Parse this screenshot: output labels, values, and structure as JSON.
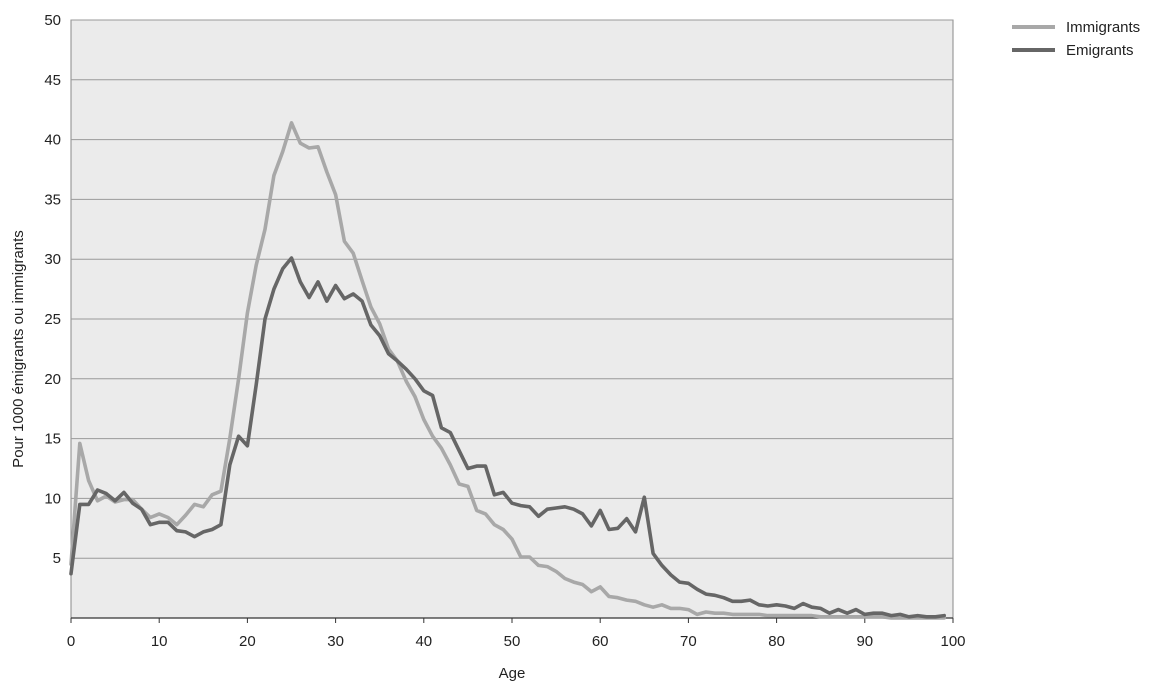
{
  "chart_data": {
    "type": "line",
    "title": "",
    "xlabel": "Age",
    "ylabel": "Pour 1000 émigrants ou immigrants",
    "xlim": [
      0,
      100
    ],
    "ylim": [
      0,
      50
    ],
    "x_ticks": [
      "0",
      "10",
      "20",
      "30",
      "40",
      "50",
      "60",
      "70",
      "80",
      "90",
      "100"
    ],
    "y_ticks": [
      "5",
      "10",
      "15",
      "20",
      "25",
      "30",
      "35",
      "40",
      "45",
      "50"
    ],
    "grid": "horizontal",
    "legend_position": "top-right",
    "plot_background": "#ebebeb",
    "gridline_color": "#9a9a9a",
    "x": [
      0,
      1,
      2,
      3,
      4,
      5,
      6,
      7,
      8,
      9,
      10,
      11,
      12,
      13,
      14,
      15,
      16,
      17,
      18,
      19,
      20,
      21,
      22,
      23,
      24,
      25,
      26,
      27,
      28,
      29,
      30,
      31,
      32,
      33,
      34,
      35,
      36,
      37,
      38,
      39,
      40,
      41,
      42,
      43,
      44,
      45,
      46,
      47,
      48,
      49,
      50,
      51,
      52,
      53,
      54,
      55,
      56,
      57,
      58,
      59,
      60,
      61,
      62,
      63,
      64,
      65,
      66,
      67,
      68,
      69,
      70,
      71,
      72,
      73,
      74,
      75,
      76,
      77,
      78,
      79,
      80,
      81,
      82,
      83,
      84,
      85,
      86,
      87,
      88,
      89,
      90,
      91,
      92,
      93,
      94,
      95,
      96,
      97,
      98,
      99
    ],
    "series": [
      {
        "name": "Immigrants",
        "color": "#a8a8a8",
        "values": [
          4.5,
          14.6,
          11.5,
          9.8,
          10.2,
          9.7,
          9.9,
          9.9,
          9.1,
          8.4,
          8.7,
          8.4,
          7.8,
          8.6,
          9.5,
          9.3,
          10.3,
          10.6,
          15.0,
          20.0,
          25.5,
          29.5,
          32.5,
          37.0,
          39.0,
          41.4,
          39.7,
          39.3,
          39.4,
          37.3,
          35.4,
          31.5,
          30.5,
          28.2,
          26.0,
          24.6,
          22.5,
          21.5,
          19.8,
          18.5,
          16.6,
          15.2,
          14.2,
          12.8,
          11.2,
          11.0,
          9.0,
          8.7,
          7.8,
          7.4,
          6.6,
          5.1,
          5.1,
          4.4,
          4.3,
          3.9,
          3.3,
          3.0,
          2.8,
          2.2,
          2.6,
          1.8,
          1.7,
          1.5,
          1.4,
          1.1,
          0.9,
          1.1,
          0.8,
          0.8,
          0.7,
          0.3,
          0.5,
          0.4,
          0.4,
          0.3,
          0.3,
          0.3,
          0.3,
          0.2,
          0.2,
          0.2,
          0.2,
          0.2,
          0.2,
          0.1,
          0.1,
          0.1,
          0.1,
          0.1,
          0.1,
          0.1,
          0.1,
          0.0,
          0.0,
          0.0,
          0.0,
          0.0,
          0.0,
          0.0
        ]
      },
      {
        "name": "Emigrants",
        "color": "#666666",
        "values": [
          3.7,
          9.5,
          9.5,
          10.7,
          10.4,
          9.8,
          10.5,
          9.6,
          9.1,
          7.8,
          8.0,
          8.0,
          7.3,
          7.2,
          6.8,
          7.2,
          7.4,
          7.8,
          12.8,
          15.2,
          14.4,
          19.5,
          25.0,
          27.5,
          29.2,
          30.1,
          28.1,
          26.8,
          28.1,
          26.5,
          27.8,
          26.7,
          27.1,
          26.5,
          24.5,
          23.6,
          22.1,
          21.5,
          20.8,
          20.0,
          19.0,
          18.6,
          15.9,
          15.5,
          14.0,
          12.5,
          12.7,
          12.7,
          10.3,
          10.5,
          9.6,
          9.4,
          9.3,
          8.5,
          9.1,
          9.2,
          9.3,
          9.1,
          8.7,
          7.7,
          9.0,
          7.4,
          7.5,
          8.3,
          7.2,
          10.1,
          5.4,
          4.4,
          3.6,
          3.0,
          2.9,
          2.4,
          2.0,
          1.9,
          1.7,
          1.4,
          1.4,
          1.5,
          1.1,
          1.0,
          1.1,
          1.0,
          0.8,
          1.2,
          0.9,
          0.8,
          0.4,
          0.7,
          0.4,
          0.7,
          0.3,
          0.4,
          0.4,
          0.2,
          0.3,
          0.1,
          0.2,
          0.1,
          0.1,
          0.2
        ]
      }
    ]
  }
}
